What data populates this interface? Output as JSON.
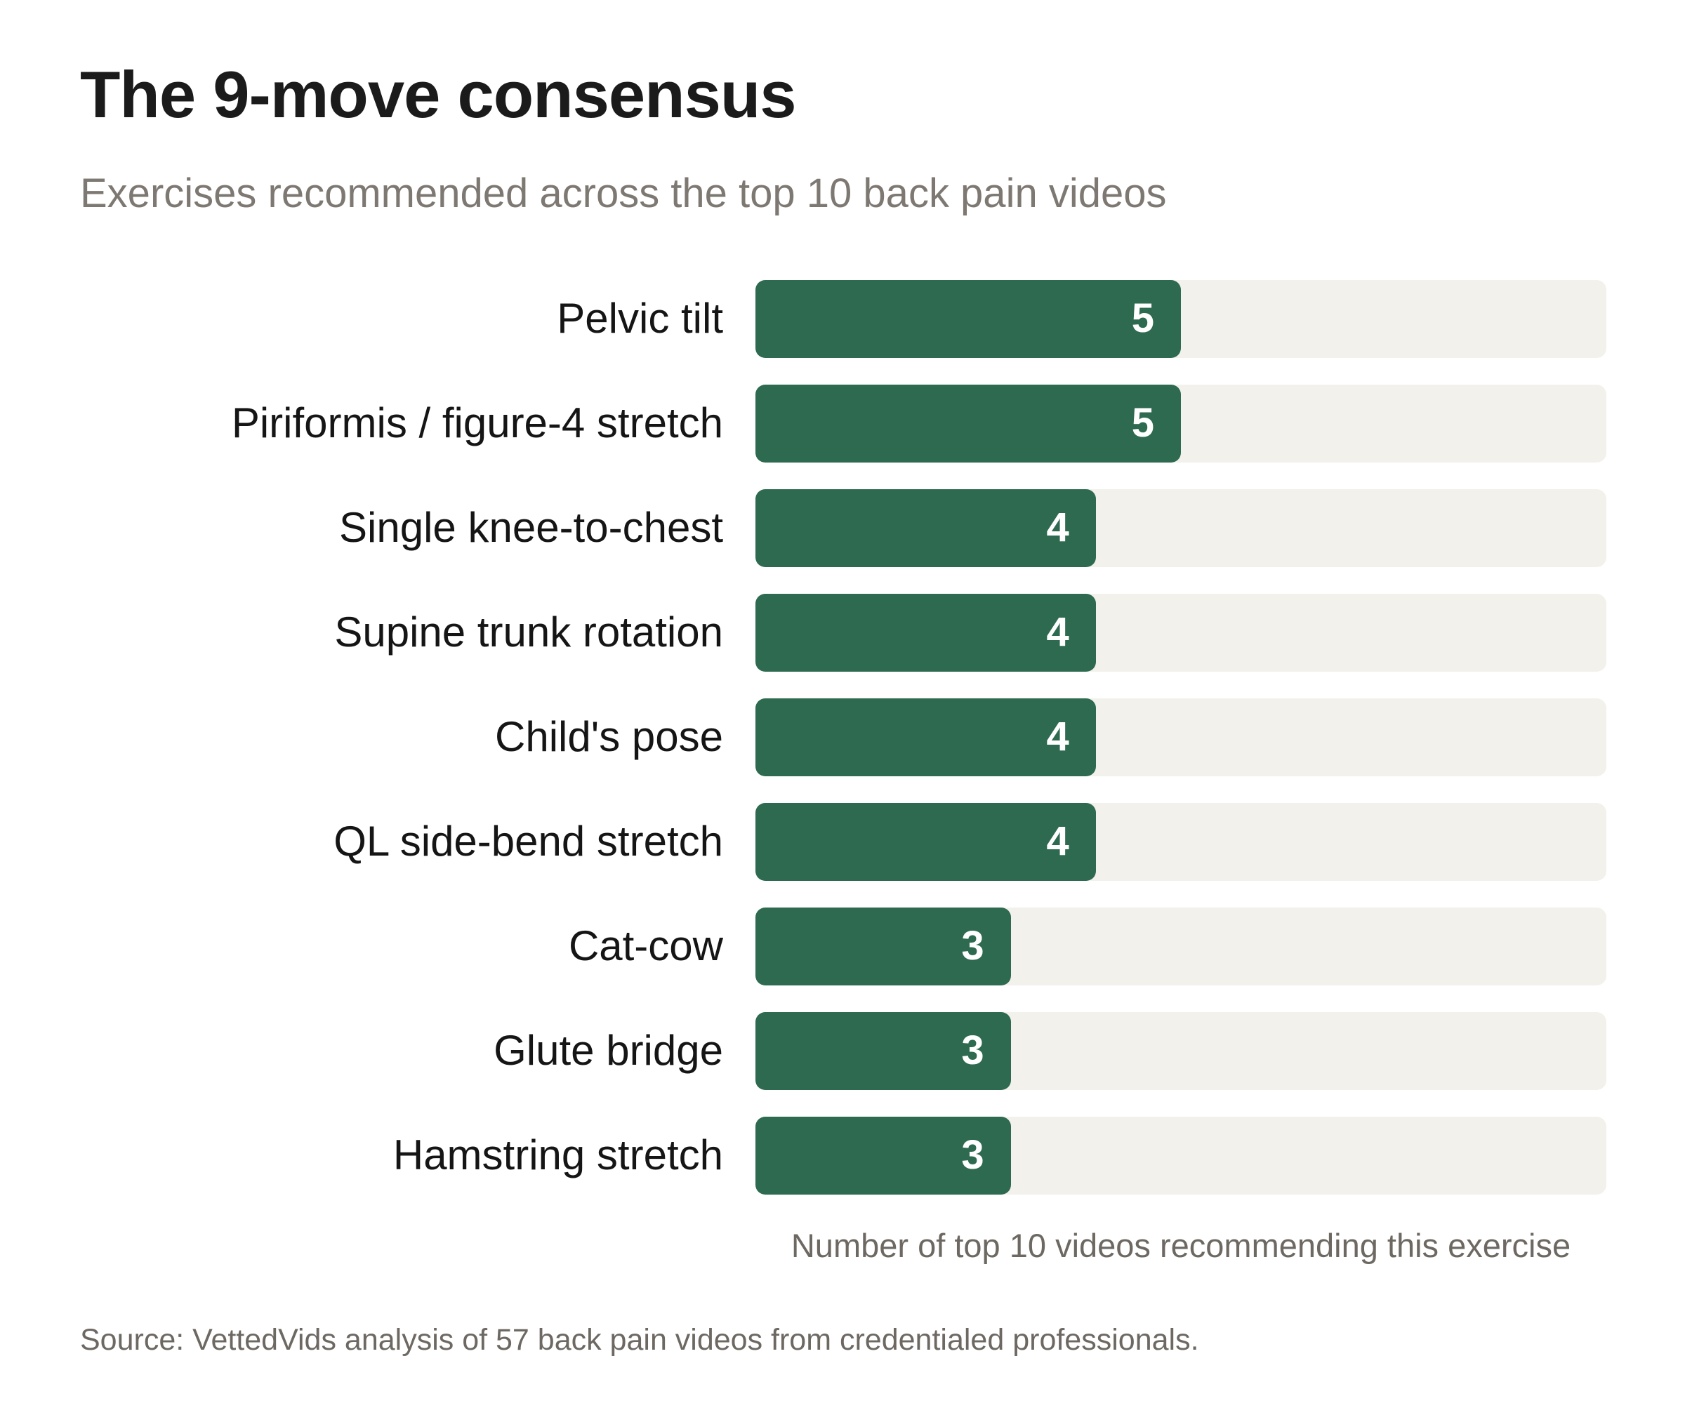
{
  "header": {
    "title": "The 9-move consensus",
    "subtitle": "Exercises recommended across the top 10 back pain videos"
  },
  "chart_data": {
    "type": "bar",
    "orientation": "horizontal",
    "title": "The 9-move consensus",
    "subtitle": "Exercises recommended across the top 10 back pain videos",
    "categories": [
      "Pelvic tilt",
      "Piriformis / figure-4 stretch",
      "Single knee-to-chest",
      "Supine trunk rotation",
      "Child's pose",
      "QL side-bend stretch",
      "Cat-cow",
      "Glute bridge",
      "Hamstring stretch"
    ],
    "values": [
      5,
      5,
      4,
      4,
      4,
      4,
      3,
      3,
      3
    ],
    "xlim": [
      0,
      10
    ],
    "xlabel": "Number of top 10 videos recommending this exercise",
    "value_labels_shown": true,
    "grid": false,
    "legend": false,
    "colors": {
      "bar": "#2d6a4f",
      "track": "#f2f1ec",
      "value_label": "#ffffff",
      "title": "#1b1b1b",
      "subtitle": "#7e7872",
      "category_label": "#151515",
      "caption": "#6d6862"
    }
  },
  "footer": {
    "source": "Source: VettedVids analysis of 57 back pain videos from credentialed professionals."
  }
}
